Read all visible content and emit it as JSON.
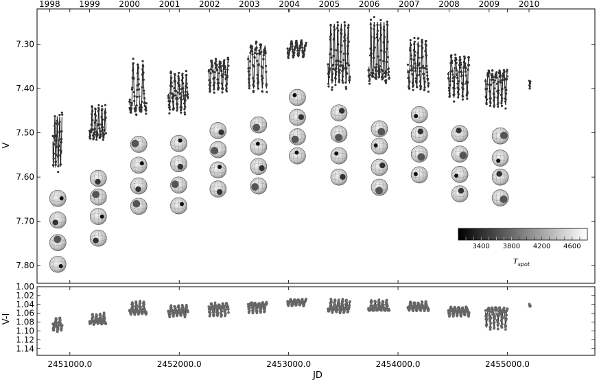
{
  "chart_data": {
    "type": "scatter",
    "title": "",
    "xlabel": "JD",
    "x_tick_labels": [
      "2451000.0",
      "2452000.0",
      "2453000.0",
      "2454000.0",
      "2455000.0"
    ],
    "x_ticks": [
      2451000,
      2452000,
      2453000,
      2454000,
      2455000
    ],
    "xlim": [
      2450700,
      2455800
    ],
    "top_axis_years": [
      {
        "label": "1998",
        "jd": 2450815
      },
      {
        "label": "1999",
        "jd": 2451180
      },
      {
        "label": "2000",
        "jd": 2451545
      },
      {
        "label": "2001",
        "jd": 2451911
      },
      {
        "label": "2002",
        "jd": 2452276
      },
      {
        "label": "2003",
        "jd": 2452641
      },
      {
        "label": "2004",
        "jd": 2453006
      },
      {
        "label": "2005",
        "jd": 2453372
      },
      {
        "label": "2006",
        "jd": 2453737
      },
      {
        "label": "2007",
        "jd": 2454102
      },
      {
        "label": "2008",
        "jd": 2454467
      },
      {
        "label": "2009",
        "jd": 2454833
      },
      {
        "label": "2010",
        "jd": 2455198
      }
    ],
    "panels": [
      {
        "name": "V",
        "ylabel": "V",
        "ylim": [
          7.84,
          7.22
        ],
        "y_ticks": [
          7.3,
          7.4,
          7.5,
          7.6,
          7.7,
          7.8
        ],
        "y_tick_labels": [
          "7.30",
          "7.40",
          "7.50",
          "7.60",
          "7.70",
          "7.80"
        ],
        "seasons": [
          {
            "start": 2450845,
            "end": 2450930,
            "mean": 7.52,
            "amp": 0.05,
            "period": 22
          },
          {
            "start": 2451180,
            "end": 2451330,
            "mean": 7.485,
            "amp": 0.032,
            "period": 30
          },
          {
            "start": 2451545,
            "end": 2451700,
            "mean": 7.41,
            "amp": 0.05,
            "period": 45
          },
          {
            "start": 2451900,
            "end": 2452080,
            "mean": 7.41,
            "amp": 0.035,
            "period": 35
          },
          {
            "start": 2452270,
            "end": 2452450,
            "mean": 7.365,
            "amp": 0.03,
            "period": 38
          },
          {
            "start": 2452630,
            "end": 2452800,
            "mean": 7.34,
            "amp": 0.045,
            "period": 40
          },
          {
            "start": 2452990,
            "end": 2453160,
            "mean": 7.31,
            "amp": 0.015,
            "period": 45
          },
          {
            "start": 2453360,
            "end": 2453560,
            "mean": 7.33,
            "amp": 0.06,
            "period": 32
          },
          {
            "start": 2453730,
            "end": 2453920,
            "mean": 7.33,
            "amp": 0.06,
            "period": 30
          },
          {
            "start": 2454090,
            "end": 2454280,
            "mean": 7.35,
            "amp": 0.045,
            "period": 35
          },
          {
            "start": 2454460,
            "end": 2454650,
            "mean": 7.37,
            "amp": 0.04,
            "period": 40
          },
          {
            "start": 2454800,
            "end": 2455000,
            "mean": 7.39,
            "amp": 0.035,
            "period": 35
          },
          {
            "start": 2455200,
            "end": 2455210,
            "mean": 7.385,
            "amp": 0.01,
            "period": 20
          }
        ]
      },
      {
        "name": "V-I",
        "ylabel": "V-I",
        "ylim": [
          1.155,
          1.0
        ],
        "y_ticks": [
          1.0,
          1.02,
          1.04,
          1.06,
          1.08,
          1.1,
          1.12,
          1.14
        ],
        "y_tick_labels": [
          "1.00",
          "1.02",
          "1.04",
          "1.06",
          "1.08",
          "1.10",
          "1.12",
          "1.14"
        ],
        "seasons": [
          {
            "start": 2450845,
            "end": 2450930,
            "mean": 1.085,
            "amp": 0.012
          },
          {
            "start": 2451180,
            "end": 2451330,
            "mean": 1.075,
            "amp": 0.01
          },
          {
            "start": 2451545,
            "end": 2451700,
            "mean": 1.05,
            "amp": 0.012
          },
          {
            "start": 2451900,
            "end": 2452080,
            "mean": 1.055,
            "amp": 0.01
          },
          {
            "start": 2452270,
            "end": 2452450,
            "mean": 1.05,
            "amp": 0.012
          },
          {
            "start": 2452630,
            "end": 2452800,
            "mean": 1.045,
            "amp": 0.01
          },
          {
            "start": 2452990,
            "end": 2453160,
            "mean": 1.035,
            "amp": 0.006
          },
          {
            "start": 2453360,
            "end": 2453560,
            "mean": 1.045,
            "amp": 0.012
          },
          {
            "start": 2453730,
            "end": 2453920,
            "mean": 1.045,
            "amp": 0.01
          },
          {
            "start": 2454090,
            "end": 2454280,
            "mean": 1.045,
            "amp": 0.008
          },
          {
            "start": 2454460,
            "end": 2454650,
            "mean": 1.055,
            "amp": 0.008
          },
          {
            "start": 2454800,
            "end": 2455000,
            "mean": 1.065,
            "amp": 0.02
          },
          {
            "start": 2455200,
            "end": 2455210,
            "mean": 1.04,
            "amp": 0.003
          }
        ]
      }
    ],
    "spot_maps": [
      {
        "jd": 2450890,
        "v": [
          7.648,
          7.697,
          7.748,
          7.797
        ]
      },
      {
        "jd": 2451260,
        "v": [
          7.603,
          7.645,
          7.689,
          7.738
        ]
      },
      {
        "jd": 2451630,
        "v": [
          7.526,
          7.573,
          7.62,
          7.666
        ]
      },
      {
        "jd": 2451995,
        "v": [
          7.524,
          7.57,
          7.618,
          7.665
        ]
      },
      {
        "jd": 2452355,
        "v": [
          7.495,
          7.538,
          7.584,
          7.627
        ]
      },
      {
        "jd": 2452725,
        "v": [
          7.482,
          7.532,
          7.576,
          7.62
        ]
      },
      {
        "jd": 2453080,
        "v": [
          7.42,
          7.465,
          7.509,
          7.552
        ]
      },
      {
        "jd": 2453460,
        "v": [
          7.455,
          7.503,
          7.552,
          7.6
        ]
      },
      {
        "jd": 2453830,
        "v": [
          7.491,
          7.53,
          7.578,
          7.623
        ]
      },
      {
        "jd": 2454195,
        "v": [
          7.459,
          7.504,
          7.548,
          7.595
        ]
      },
      {
        "jd": 2454565,
        "v": [
          7.502,
          7.548,
          7.594,
          7.638
        ]
      },
      {
        "jd": 2454935,
        "v": [
          7.507,
          7.557,
          7.6,
          7.647
        ]
      }
    ],
    "colorbar": {
      "label": "T_spot",
      "ticks": [
        3400,
        3800,
        4200,
        4600
      ],
      "range": [
        3100,
        4800
      ],
      "colors": [
        "#000000",
        "#ffffff"
      ]
    },
    "grid": false,
    "legend": "none"
  }
}
